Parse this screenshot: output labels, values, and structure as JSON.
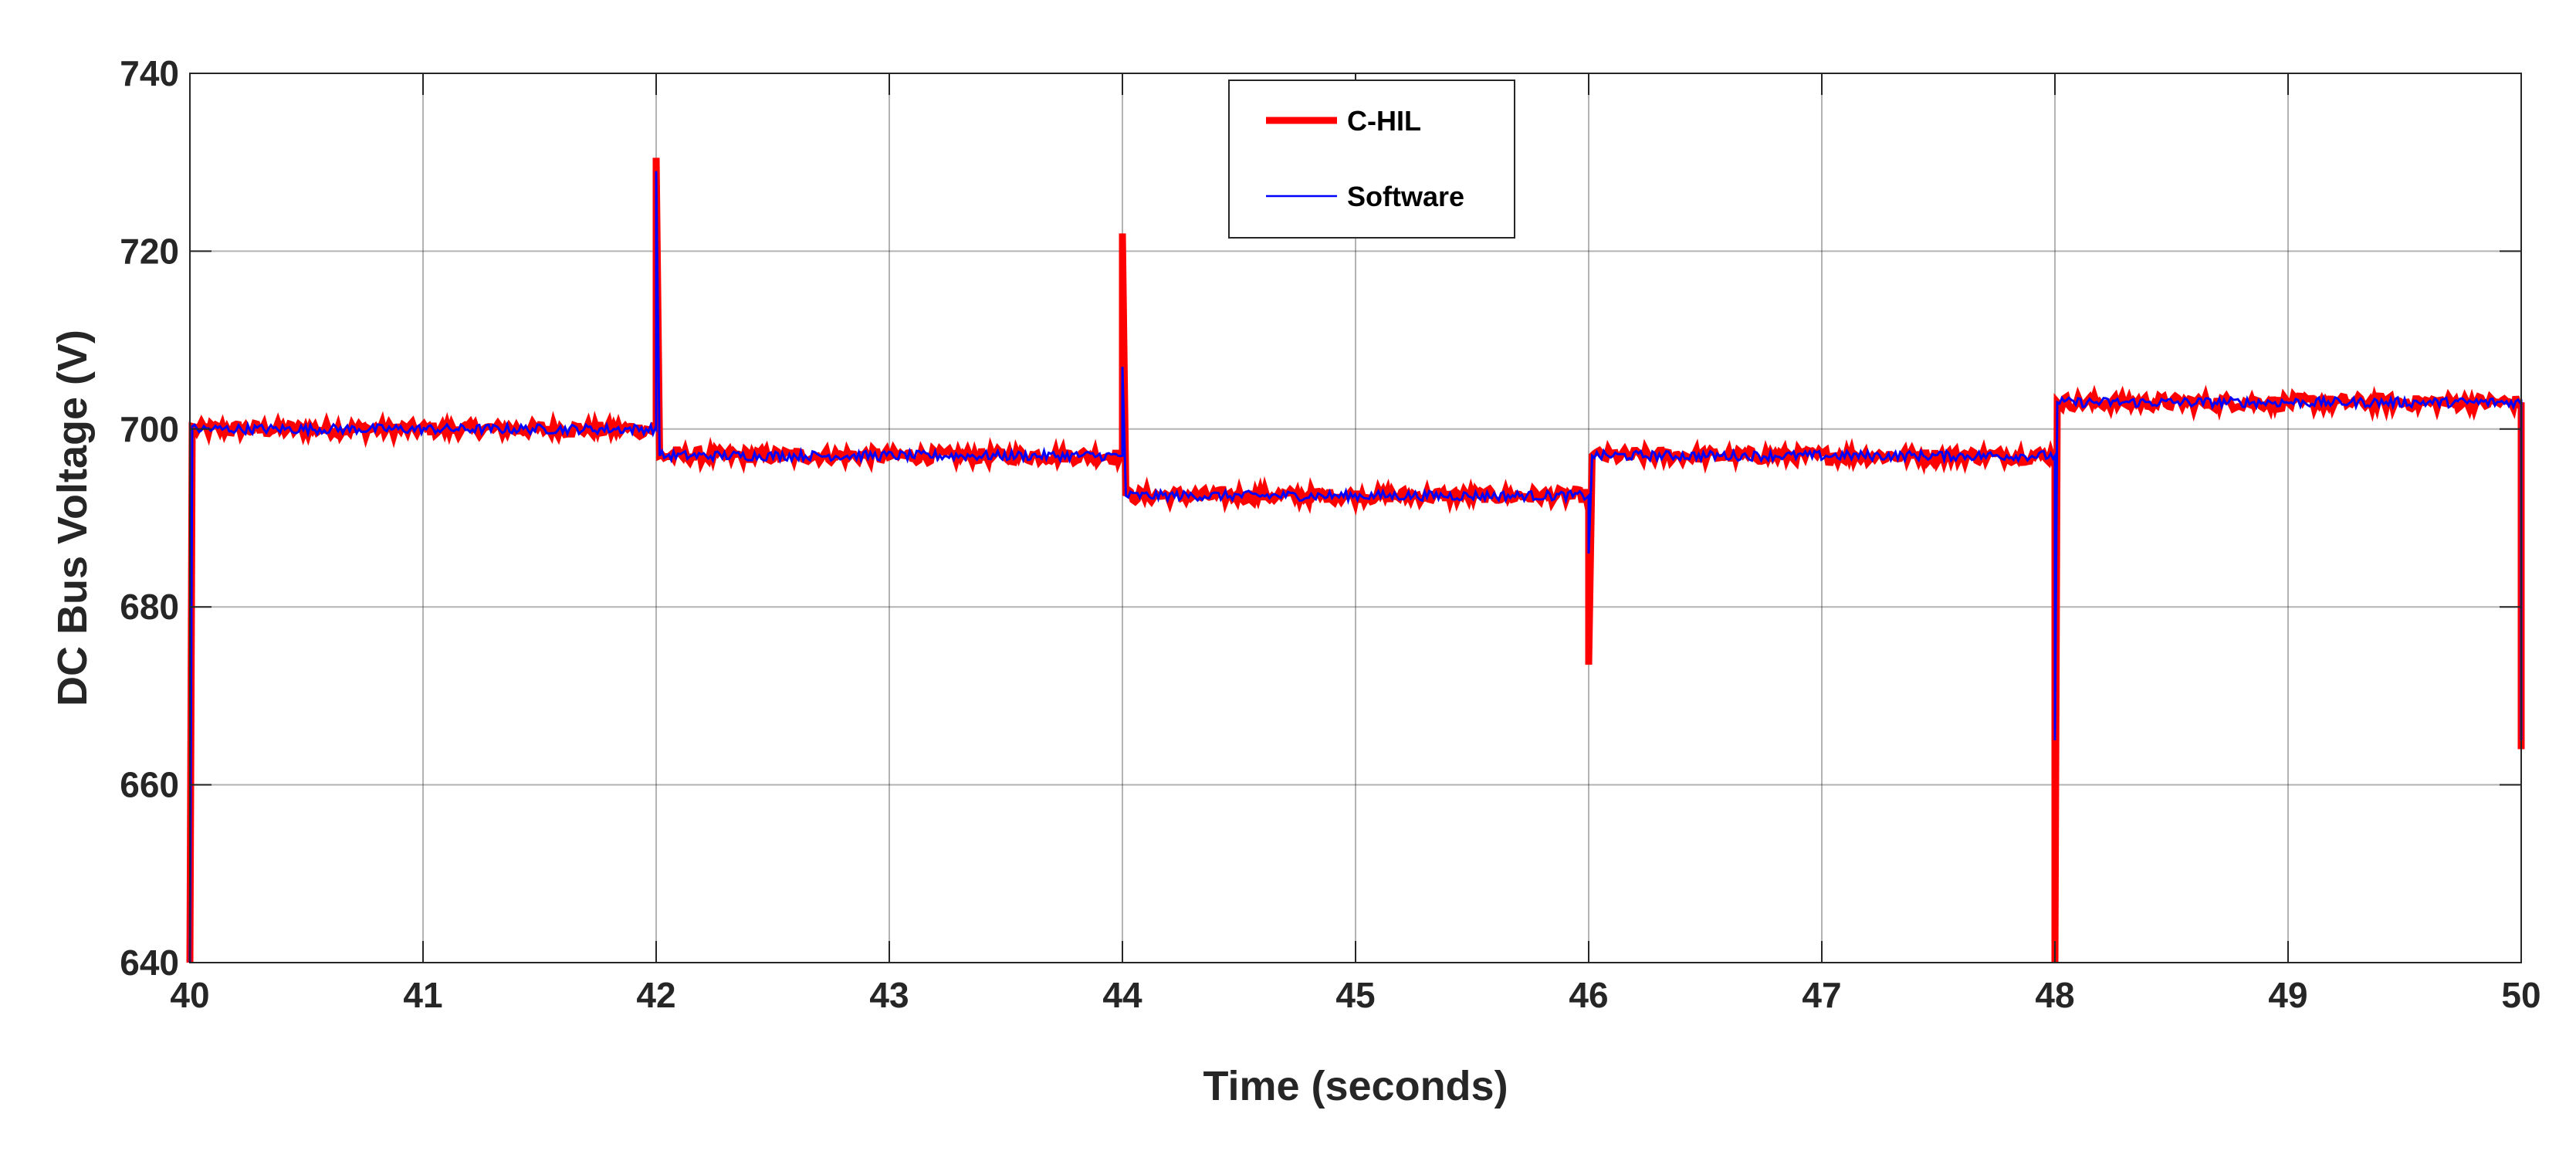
{
  "chart_data": {
    "type": "line",
    "title": "",
    "xlabel": "Time (seconds)",
    "ylabel": "DC Bus Voltage (V)",
    "xlim": [
      40,
      50
    ],
    "ylim": [
      640,
      740
    ],
    "xticks": [
      40,
      41,
      42,
      43,
      44,
      45,
      46,
      47,
      48,
      49,
      50
    ],
    "yticks": [
      640,
      660,
      680,
      700,
      720,
      740
    ],
    "grid": true,
    "legend_position": "top-center",
    "series": [
      {
        "name": "C-HIL",
        "color": "#ff0000",
        "points": [
          [
            40.0,
            640
          ],
          [
            40.01,
            700.3
          ],
          [
            42.0,
            700.0
          ],
          [
            42.0,
            730.5
          ],
          [
            42.015,
            697.0
          ],
          [
            44.0,
            697.0
          ],
          [
            44.0,
            722.0
          ],
          [
            44.015,
            692.5
          ],
          [
            46.0,
            692.5
          ],
          [
            46.0,
            673.5
          ],
          [
            46.015,
            697.0
          ],
          [
            48.0,
            697.0
          ],
          [
            48.0,
            640
          ],
          [
            48.01,
            703.0
          ],
          [
            50.0,
            703.0
          ],
          [
            50.0,
            664
          ]
        ]
      },
      {
        "name": "Software",
        "color": "#0000ff",
        "points": [
          [
            40.0,
            640
          ],
          [
            40.01,
            700.3
          ],
          [
            42.0,
            700.0
          ],
          [
            42.0,
            729.0
          ],
          [
            42.015,
            697.0
          ],
          [
            44.0,
            697.0
          ],
          [
            44.0,
            707.0
          ],
          [
            44.015,
            692.5
          ],
          [
            46.0,
            692.5
          ],
          [
            46.0,
            686.0
          ],
          [
            46.015,
            697.0
          ],
          [
            48.0,
            697.0
          ],
          [
            48.0,
            665.0
          ],
          [
            48.01,
            703.0
          ],
          [
            50.0,
            703.0
          ],
          [
            50.0,
            665
          ]
        ]
      }
    ]
  }
}
